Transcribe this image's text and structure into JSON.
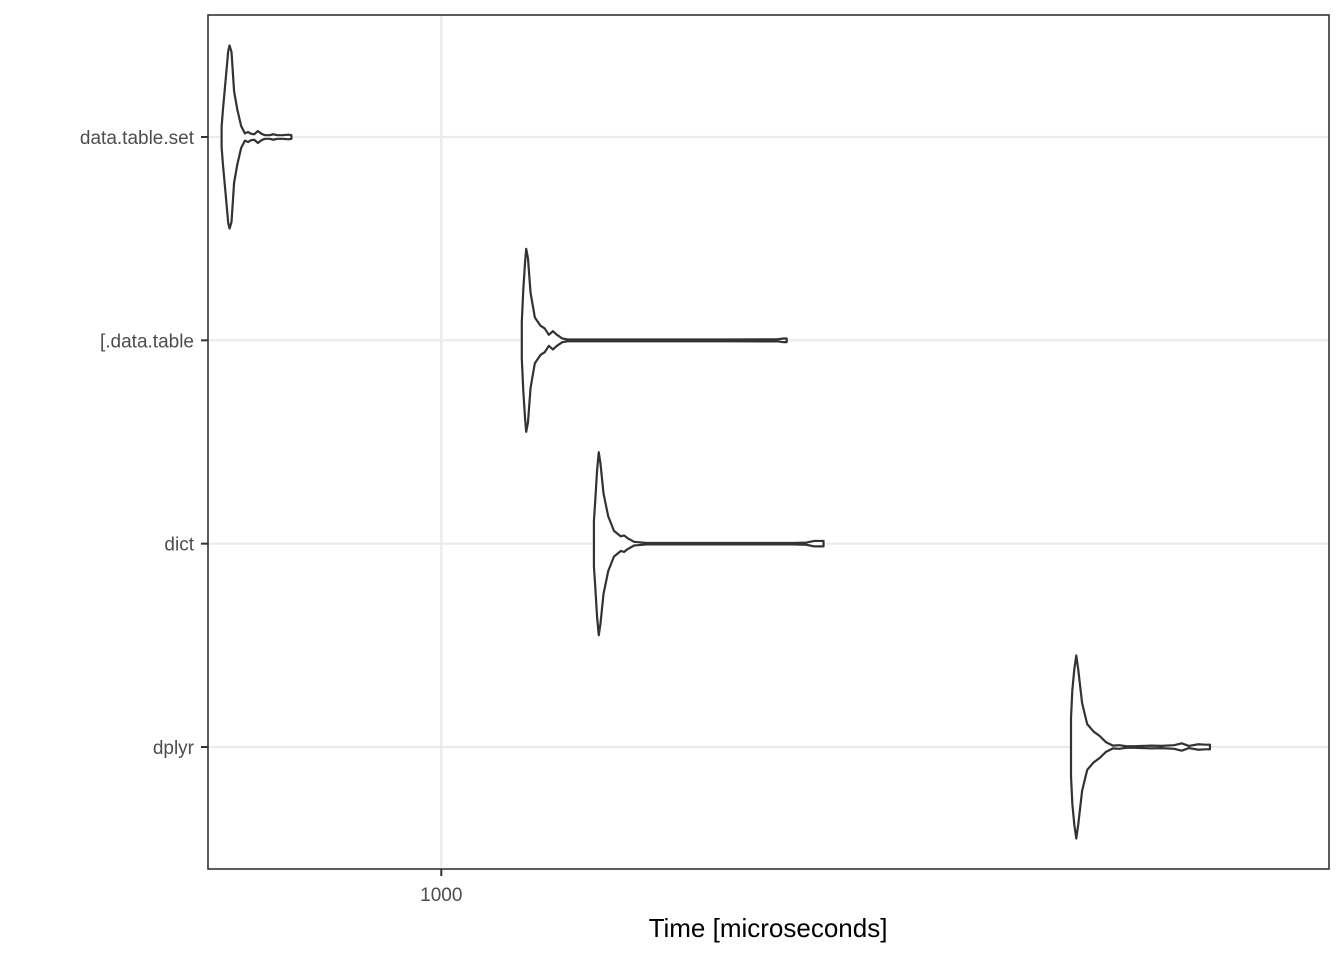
{
  "chart_data": {
    "type": "violin",
    "title": "",
    "xlabel": "Time [microseconds]",
    "ylabel": "",
    "x_scale": "log10",
    "x_ticks": [
      {
        "value": 1000,
        "label": "1000"
      }
    ],
    "xlim": [
      530,
      11200
    ],
    "grid": true,
    "legend": "none",
    "categories": [
      "data.table.set",
      "[.data.table",
      "dict",
      "dplyr"
    ],
    "series": [
      {
        "label": "data.table.set",
        "min": 550,
        "max": 665,
        "density": [
          [
            550,
            0.11
          ],
          [
            552,
            0.3
          ],
          [
            556,
            0.62
          ],
          [
            560,
            0.94
          ],
          [
            562,
            1.0
          ],
          [
            565,
            0.93
          ],
          [
            569,
            0.5
          ],
          [
            574,
            0.3
          ],
          [
            580,
            0.12
          ],
          [
            586,
            0.04
          ],
          [
            591,
            0.055
          ],
          [
            596,
            0.035
          ],
          [
            601,
            0.03
          ],
          [
            607,
            0.065
          ],
          [
            613,
            0.035
          ],
          [
            619,
            0.02
          ],
          [
            627,
            0.02
          ],
          [
            633,
            0.03
          ],
          [
            640,
            0.02
          ],
          [
            650,
            0.02
          ],
          [
            660,
            0.025
          ],
          [
            665,
            0.02
          ]
        ]
      },
      {
        "label": "[.data.table",
        "min": 1245,
        "max": 2560,
        "density": [
          [
            1245,
            0.2
          ],
          [
            1250,
            0.55
          ],
          [
            1256,
            0.85
          ],
          [
            1260,
            1.0
          ],
          [
            1266,
            0.9
          ],
          [
            1275,
            0.52
          ],
          [
            1290,
            0.25
          ],
          [
            1310,
            0.16
          ],
          [
            1325,
            0.13
          ],
          [
            1340,
            0.06
          ],
          [
            1355,
            0.1
          ],
          [
            1370,
            0.06
          ],
          [
            1390,
            0.02
          ],
          [
            1410,
            0.01
          ],
          [
            1500,
            0.01
          ],
          [
            1800,
            0.01
          ],
          [
            2200,
            0.01
          ],
          [
            2500,
            0.012
          ],
          [
            2540,
            0.02
          ],
          [
            2560,
            0.02
          ]
        ]
      },
      {
        "label": "dict",
        "min": 1515,
        "max": 2830,
        "density": [
          [
            1515,
            0.25
          ],
          [
            1520,
            0.45
          ],
          [
            1528,
            0.8
          ],
          [
            1535,
            1.0
          ],
          [
            1542,
            0.88
          ],
          [
            1555,
            0.55
          ],
          [
            1575,
            0.3
          ],
          [
            1600,
            0.14
          ],
          [
            1630,
            0.08
          ],
          [
            1645,
            0.09
          ],
          [
            1660,
            0.06
          ],
          [
            1690,
            0.02
          ],
          [
            1750,
            0.008
          ],
          [
            2000,
            0.008
          ],
          [
            2400,
            0.008
          ],
          [
            2600,
            0.008
          ],
          [
            2700,
            0.012
          ],
          [
            2760,
            0.03
          ],
          [
            2800,
            0.03
          ],
          [
            2830,
            0.03
          ]
        ]
      },
      {
        "label": "dplyr",
        "min": 5550,
        "max": 8100,
        "density": [
          [
            5550,
            0.32
          ],
          [
            5570,
            0.62
          ],
          [
            5600,
            0.85
          ],
          [
            5630,
            1.0
          ],
          [
            5660,
            0.85
          ],
          [
            5720,
            0.48
          ],
          [
            5800,
            0.25
          ],
          [
            5900,
            0.17
          ],
          [
            6000,
            0.12
          ],
          [
            6100,
            0.055
          ],
          [
            6220,
            0.015
          ],
          [
            6330,
            0.02
          ],
          [
            6450,
            0.008
          ],
          [
            6600,
            0.008
          ],
          [
            6900,
            0.015
          ],
          [
            7100,
            0.012
          ],
          [
            7350,
            0.02
          ],
          [
            7500,
            0.04
          ],
          [
            7650,
            0.012
          ],
          [
            7850,
            0.03
          ],
          [
            8000,
            0.025
          ],
          [
            8100,
            0.025
          ]
        ]
      }
    ]
  }
}
